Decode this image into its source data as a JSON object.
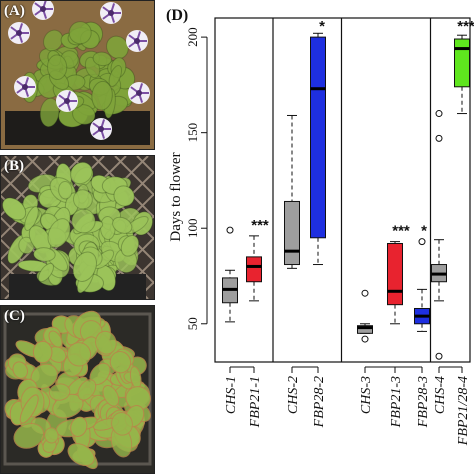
{
  "panels": {
    "a": "(A)",
    "b": "(B)",
    "c": "(C)",
    "d": "(D)"
  },
  "photo_colors": {
    "a_bg": "#8a6b42",
    "a_leaf": "#7fa43a",
    "a_flower": "#f1eef6",
    "a_vein": "#7b4fa3",
    "b_bg": "#3c3530",
    "b_leaf": "#9cc45a",
    "c_bg": "#2b2a26",
    "c_leaf": "#96b64b",
    "c_edge": "#b7874a"
  },
  "chart_data": {
    "type": "box",
    "ylabel": "Days to flower",
    "ylim": [
      30,
      210
    ],
    "yticks": [
      50,
      100,
      150,
      200
    ],
    "groups": [
      {
        "categories": [
          "CHS-1",
          "FBP21-1"
        ]
      },
      {
        "categories": [
          "CHS-2",
          "FBP28-2"
        ]
      },
      {
        "categories": [
          "CHS-3",
          "FBP21-3",
          "FBP28-3"
        ]
      },
      {
        "categories": [
          "CHS-4",
          "FBP21/28-4"
        ]
      }
    ],
    "boxes": [
      {
        "label": "CHS-1",
        "color": "#9e9e9e",
        "min": 51,
        "q1": 61,
        "median": 68,
        "q3": 74,
        "max": 78,
        "outliers": [
          99
        ],
        "sig": ""
      },
      {
        "label": "FBP21-1",
        "color": "#e8232f",
        "min": 62,
        "q1": 72,
        "median": 80,
        "q3": 85,
        "max": 96,
        "outliers": [],
        "sig": "***"
      },
      {
        "label": "CHS-2",
        "color": "#9e9e9e",
        "min": 79,
        "q1": 81,
        "median": 88,
        "q3": 114,
        "max": 159,
        "outliers": [],
        "sig": ""
      },
      {
        "label": "FBP28-2",
        "color": "#1e2fe0",
        "min": 81,
        "q1": 95,
        "median": 173,
        "q3": 200,
        "max": 202,
        "outliers": [],
        "sig": "*"
      },
      {
        "label": "CHS-3",
        "color": "#9e9e9e",
        "min": 45,
        "q1": 45,
        "median": 48,
        "q3": 49,
        "max": 50,
        "outliers": [
          42,
          66
        ],
        "sig": ""
      },
      {
        "label": "FBP21-3",
        "color": "#e8232f",
        "min": 50,
        "q1": 60,
        "median": 67,
        "q3": 92,
        "max": 93,
        "outliers": [],
        "sig": "***"
      },
      {
        "label": "FBP28-3",
        "color": "#1e2fe0",
        "min": 46,
        "q1": 50,
        "median": 54,
        "q3": 58,
        "max": 68,
        "outliers": [
          93
        ],
        "sig": "*"
      },
      {
        "label": "CHS-4",
        "color": "#9e9e9e",
        "min": 62,
        "q1": 72,
        "median": 76,
        "q3": 81,
        "max": 94,
        "outliers": [
          33,
          147,
          160
        ],
        "sig": ""
      },
      {
        "label": "FBP21/28-4",
        "color": "#5fe61e",
        "min": 160,
        "q1": 174,
        "median": 194,
        "q3": 199,
        "max": 201,
        "outliers": [],
        "sig": "***"
      }
    ]
  }
}
